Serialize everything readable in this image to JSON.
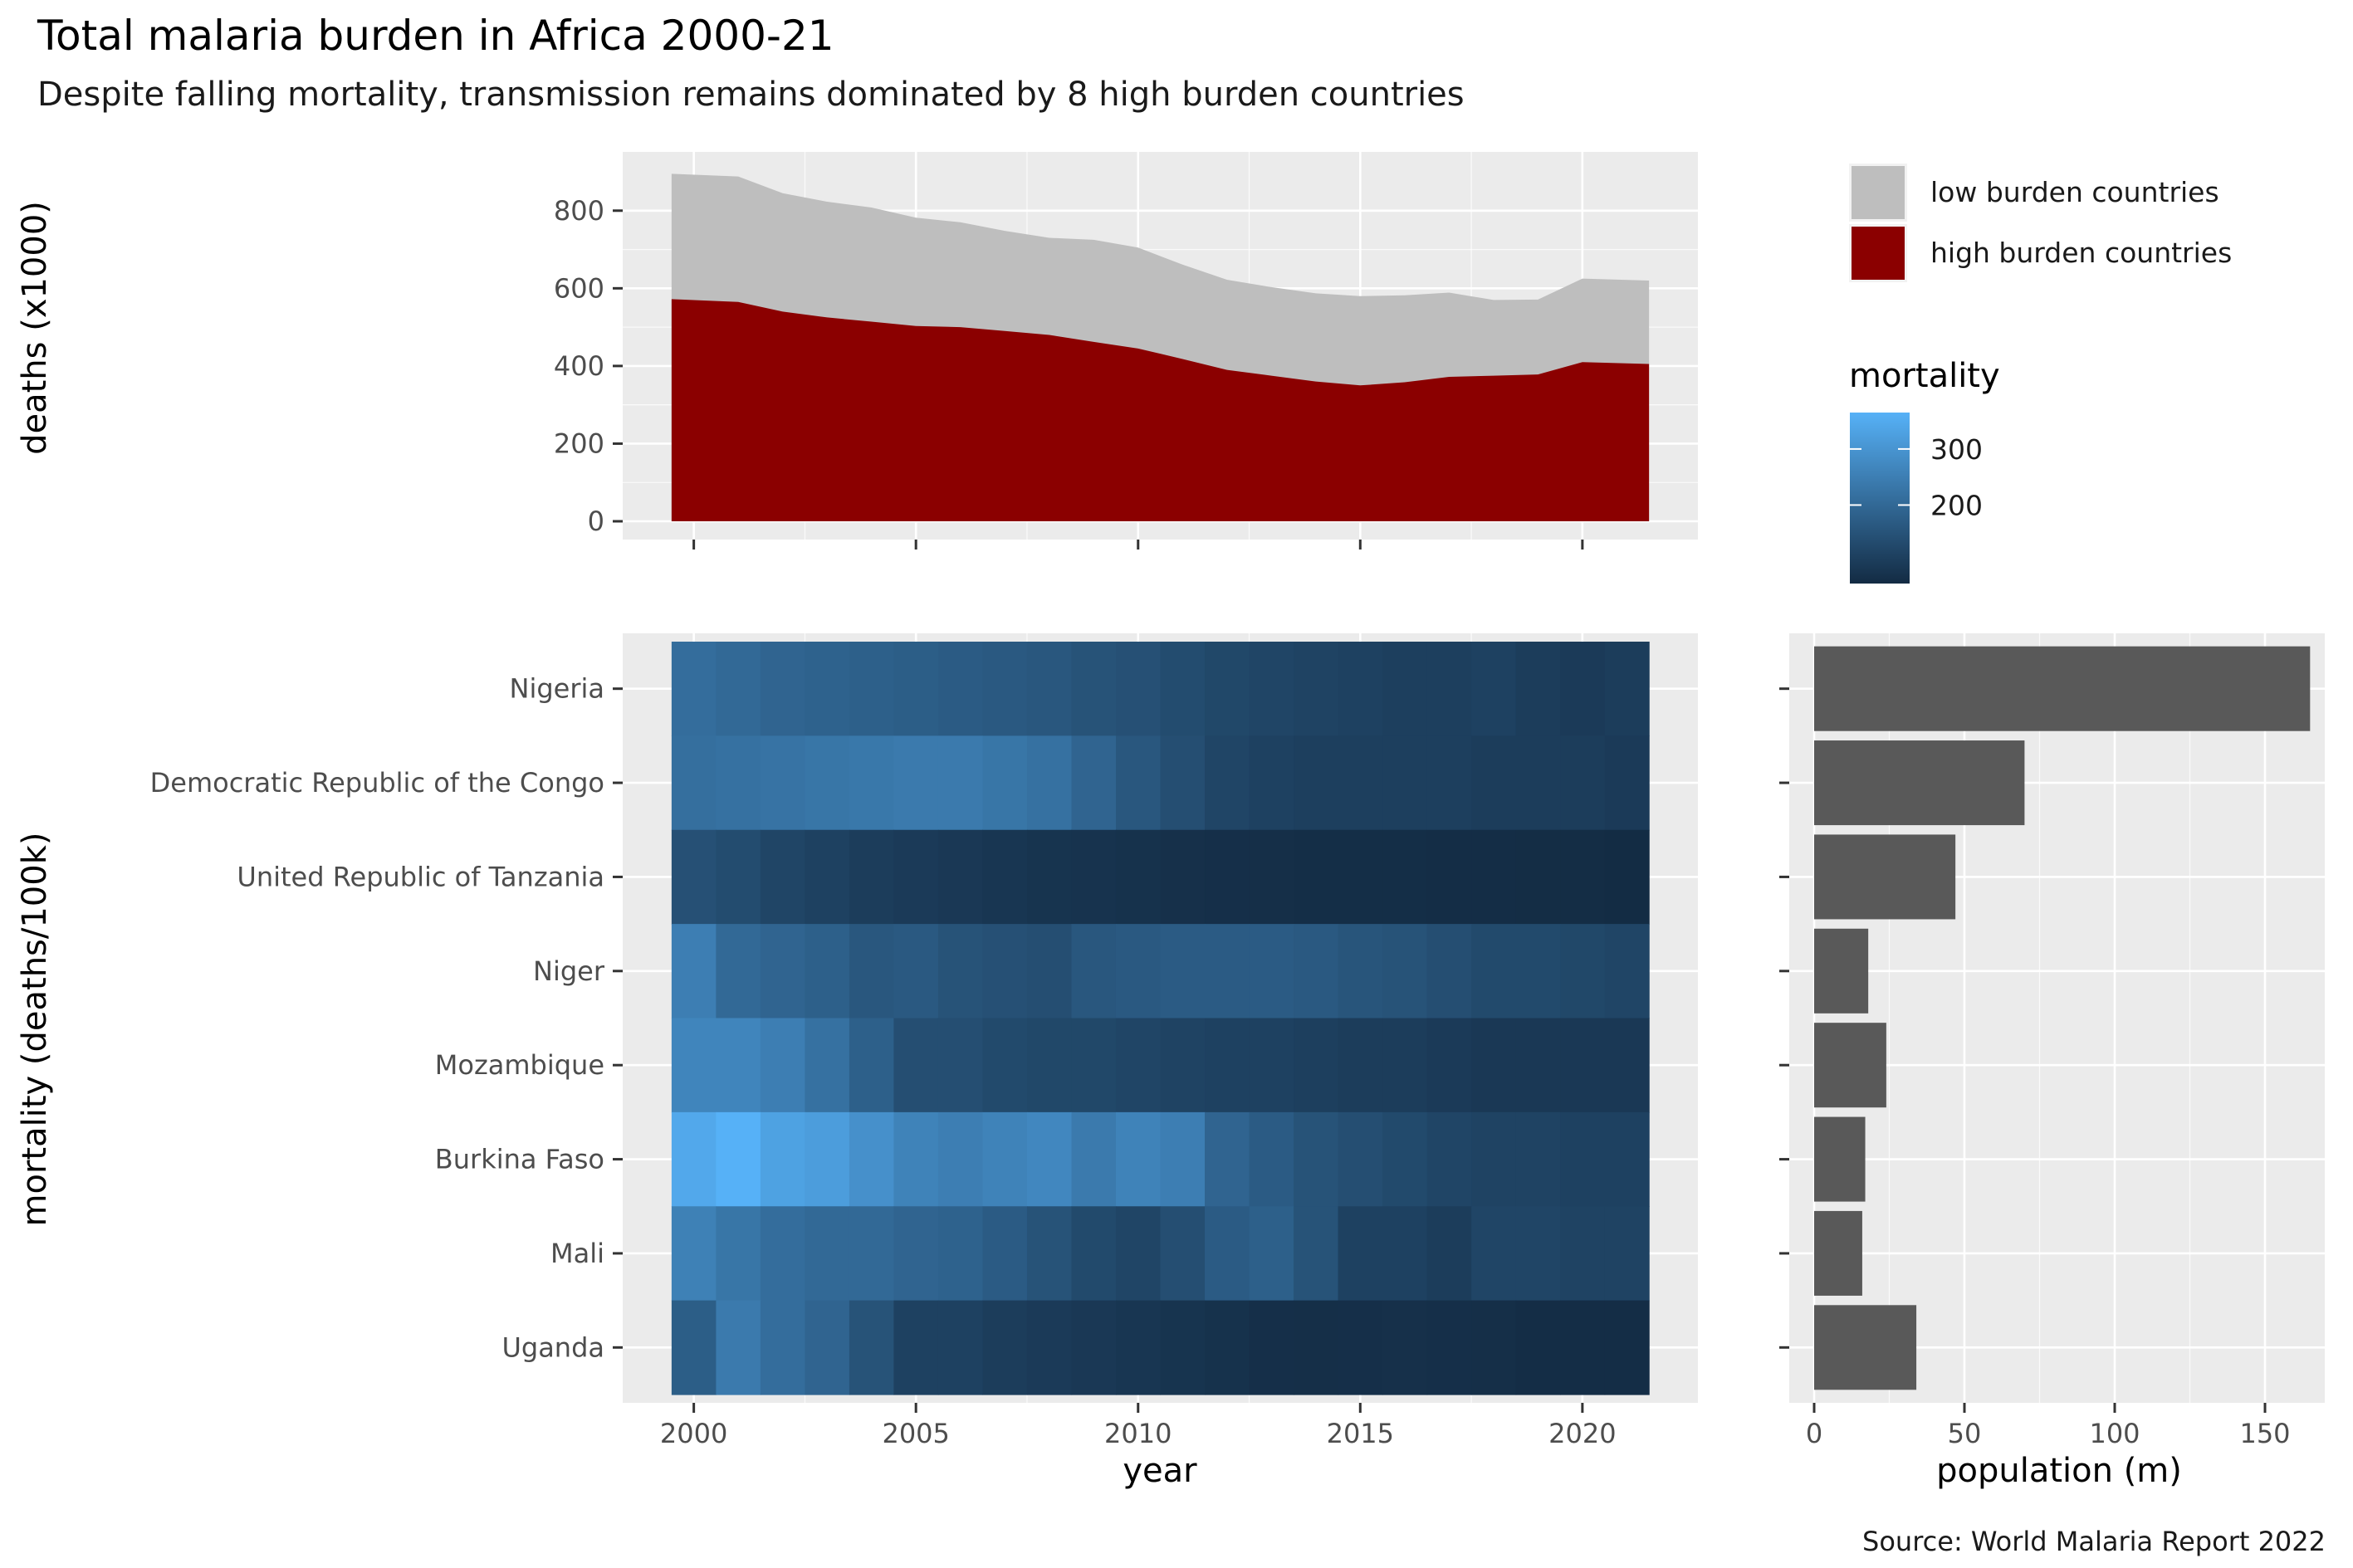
{
  "title": "Total malaria burden in Africa 2000-21",
  "subtitle": "Despite falling mortality, transmission remains dominated by 8 high burden countries",
  "caption": "Source: World Malaria Report 2022",
  "colors": {
    "high_burden": "#8b0000",
    "low_burden": "#bebebe",
    "bar_fill": "#595959",
    "mortality_low": "#132b43",
    "mortality_high": "#56b1f7",
    "panel_bg": "#ebebeb"
  },
  "chart_data": [
    {
      "type": "area",
      "stacked": true,
      "ylabel": "deaths (x1000)",
      "ylim": [
        0,
        900
      ],
      "yticks": [
        0,
        200,
        400,
        600,
        800
      ],
      "xticks": [
        2000,
        2005,
        2010,
        2015,
        2020
      ],
      "x": [
        2000,
        2001,
        2002,
        2003,
        2004,
        2005,
        2006,
        2007,
        2008,
        2009,
        2010,
        2011,
        2012,
        2013,
        2014,
        2015,
        2016,
        2017,
        2018,
        2019,
        2020,
        2021
      ],
      "series": [
        {
          "name": "high burden countries",
          "values": [
            572,
            565,
            540,
            525,
            514,
            503,
            500,
            490,
            480,
            462,
            445,
            418,
            390,
            375,
            360,
            350,
            358,
            372,
            375,
            378,
            410,
            405
          ]
        },
        {
          "name": "low burden countries",
          "values": [
            323,
            323,
            305,
            298,
            294,
            279,
            270,
            258,
            250,
            263,
            260,
            243,
            232,
            228,
            227,
            230,
            224,
            217,
            195,
            193,
            215,
            215
          ]
        }
      ],
      "legend": {
        "position": "right",
        "entries": [
          "low burden countries",
          "high burden countries"
        ]
      }
    },
    {
      "type": "heatmap",
      "xlabel": "year",
      "ylabel": "mortality (deaths/100k)",
      "xticks": [
        2000,
        2005,
        2010,
        2015,
        2020
      ],
      "x": [
        2000,
        2001,
        2002,
        2003,
        2004,
        2005,
        2006,
        2007,
        2008,
        2009,
        2010,
        2011,
        2012,
        2013,
        2014,
        2015,
        2016,
        2017,
        2018,
        2019,
        2020,
        2021
      ],
      "countries": [
        "Nigeria",
        "Democratic Republic of the Congo",
        "United Republic of Tanzania",
        "Niger",
        "Mozambique",
        "Burkina Faso",
        "Mali",
        "Uganda"
      ],
      "values": [
        [
          210,
          200,
          190,
          185,
          180,
          175,
          170,
          165,
          160,
          150,
          145,
          135,
          125,
          120,
          115,
          110,
          105,
          105,
          110,
          100,
          95,
          100
        ],
        [
          215,
          220,
          225,
          230,
          235,
          240,
          240,
          230,
          220,
          190,
          160,
          140,
          120,
          110,
          105,
          105,
          105,
          105,
          100,
          100,
          100,
          95
        ],
        [
          145,
          135,
          120,
          110,
          100,
          95,
          90,
          85,
          80,
          78,
          75,
          72,
          70,
          68,
          66,
          66,
          66,
          65,
          65,
          64,
          64,
          62
        ],
        [
          250,
          200,
          190,
          180,
          160,
          165,
          150,
          145,
          140,
          160,
          165,
          170,
          170,
          170,
          165,
          155,
          150,
          140,
          130,
          130,
          125,
          120
        ],
        [
          265,
          265,
          250,
          220,
          180,
          140,
          140,
          130,
          125,
          125,
          120,
          115,
          110,
          110,
          105,
          100,
          100,
          95,
          90,
          90,
          90,
          90
        ],
        [
          345,
          365,
          330,
          320,
          290,
          260,
          250,
          260,
          270,
          240,
          260,
          250,
          190,
          170,
          150,
          140,
          130,
          120,
          115,
          115,
          110,
          110
        ],
        [
          255,
          230,
          210,
          200,
          200,
          190,
          185,
          170,
          150,
          130,
          120,
          140,
          170,
          180,
          150,
          110,
          110,
          100,
          120,
          120,
          115,
          115
        ],
        [
          175,
          240,
          210,
          190,
          150,
          110,
          110,
          100,
          95,
          90,
          85,
          80,
          75,
          70,
          68,
          70,
          72,
          70,
          68,
          65,
          65,
          65
        ]
      ],
      "colorbar": {
        "title": "mortality",
        "ticks": [
          200,
          300
        ],
        "range": [
          60,
          365
        ]
      }
    },
    {
      "type": "bar",
      "orientation": "horizontal",
      "xlabel": "population (m)",
      "xticks": [
        0,
        50,
        100,
        150
      ],
      "xlim": [
        0,
        170
      ],
      "categories": [
        "Nigeria",
        "Democratic Republic of the Congo",
        "United Republic of Tanzania",
        "Niger",
        "Mozambique",
        "Burkina Faso",
        "Mali",
        "Uganda"
      ],
      "values": [
        165,
        70,
        47,
        18,
        24,
        17,
        16,
        34
      ]
    }
  ]
}
